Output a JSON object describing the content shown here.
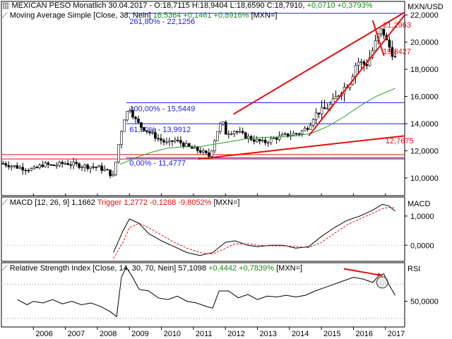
{
  "header": {
    "main": {
      "instrument": "MEXICAN PESO Monatlich",
      "date": "30.04.2017",
      "ohlc": "- O:18,7115 H:18,9404 L:18,6590 C:18,7910",
      "change": "+0,0710 +0,3793%"
    },
    "ma": {
      "label": "Moving Average Simple [Close, 38, Nein]",
      "value": "16,5364",
      "change": "+0,1461 +0,8916%",
      "currency": "[MXN=]"
    },
    "macd": {
      "label": "MACD [12, 26, 9]",
      "value": "1,1662",
      "trigger": "Trigger",
      "trigger_values": "1,2772 -0,1268 -9,8052%",
      "currency": "[MXN=]"
    },
    "rsi": {
      "label": "Relative Strength Index [Close, 14, 30, 70, Nein]",
      "value": "57,1098",
      "change": "+0,4442 +0,7839%",
      "currency": "[MXN=]"
    }
  },
  "chart_data": [
    {
      "type": "candlestick",
      "axis_label": "MXN/USD",
      "ylim": [
        8.7,
        23.0
      ],
      "y_ticks": [
        "10,0000",
        "12,0000",
        "14,0000",
        "16,0000",
        "18,0000",
        "20,0000",
        "22,0000"
      ],
      "y_tick_values": [
        10,
        12,
        14,
        16,
        18,
        20,
        22
      ],
      "x_range": [
        2005.0,
        2017.6
      ],
      "x_ticks": [
        "2006",
        "2007",
        "2008",
        "2009",
        "2010",
        "2011",
        "2012",
        "2013",
        "2014",
        "2015",
        "2016",
        "2017"
      ],
      "x_tick_values": [
        2006,
        2007,
        2008,
        2009,
        2010,
        2011,
        2012,
        2013,
        2014,
        2015,
        2016,
        2017
      ],
      "fib_levels": [
        {
          "label": "261,80% - 22,1256",
          "value": 22.1256
        },
        {
          "label": "100,00% - 15,5449",
          "value": 15.5449
        },
        {
          "label": "61,80% - 13,9912",
          "value": 13.9912
        },
        {
          "label": "0,00% - 11,4777",
          "value": 11.4777
        }
      ],
      "horizontal_lines": [
        11.72,
        11.4
      ],
      "annotations": [
        {
          "label": "12,7675",
          "x": 2017.0,
          "y": 12.7675
        },
        {
          "label": "21,2963",
          "x": 2016.92,
          "y": 21.2963
        },
        {
          "label": "19,3427",
          "x": 2016.92,
          "y": 19.3427
        }
      ],
      "trendlines": [
        {
          "x": [
            2011.15,
            2017.6
          ],
          "y": [
            11.4,
            13.1
          ]
        },
        {
          "x": [
            2012.25,
            2017.6
          ],
          "y": [
            14.7,
            22.2
          ]
        },
        {
          "x": [
            2014.6,
            2017.6
          ],
          "y": [
            13.1,
            22.0
          ]
        },
        {
          "x": [
            2016.6,
            2016.95
          ],
          "y": [
            21.6,
            19.0
          ]
        }
      ],
      "price_series": {
        "x": [
          2005.0,
          2005.5,
          2006.0,
          2006.3,
          2006.6,
          2007.0,
          2007.5,
          2008.0,
          2008.3,
          2008.5,
          2008.7,
          2008.85,
          2009.0,
          2009.15,
          2009.35,
          2009.6,
          2009.9,
          2010.2,
          2010.4,
          2010.6,
          2010.9,
          2011.2,
          2011.5,
          2011.75,
          2011.9,
          2012.0,
          2012.3,
          2012.6,
          2012.9,
          2013.2,
          2013.5,
          2013.8,
          2014.0,
          2014.3,
          2014.6,
          2014.8,
          2015.0,
          2015.3,
          2015.6,
          2015.9,
          2016.1,
          2016.4,
          2016.6,
          2016.75,
          2016.9,
          2017.0,
          2017.3
        ],
        "close": [
          11.1,
          10.8,
          10.6,
          11.0,
          10.9,
          11.1,
          10.9,
          10.8,
          10.5,
          10.1,
          13.0,
          14.5,
          15.2,
          14.4,
          13.8,
          13.4,
          12.9,
          12.5,
          12.8,
          12.6,
          12.2,
          12.0,
          11.6,
          13.5,
          14.2,
          13.3,
          13.5,
          13.1,
          12.8,
          12.6,
          12.9,
          13.1,
          13.2,
          13.3,
          13.8,
          14.7,
          14.9,
          15.4,
          16.4,
          17.1,
          18.6,
          18.3,
          19.4,
          20.4,
          21.0,
          20.2,
          18.8
        ]
      },
      "ma_series": {
        "x": [
          2008.7,
          2009.2,
          2009.7,
          2010.2,
          2010.7,
          2011.2,
          2011.7,
          2012.2,
          2012.7,
          2013.2,
          2013.7,
          2014.2,
          2014.7,
          2015.2,
          2015.7,
          2016.2,
          2016.7,
          2017.3
        ],
        "y": [
          11.0,
          11.5,
          11.9,
          12.2,
          12.3,
          12.3,
          12.5,
          12.7,
          12.9,
          13.0,
          13.0,
          13.1,
          13.3,
          13.8,
          14.5,
          15.3,
          16.0,
          16.6
        ]
      }
    },
    {
      "type": "line",
      "axis_label": "MACD",
      "ylim": [
        -0.55,
        1.65
      ],
      "y_ticks": [
        "1,0000",
        "0,0000"
      ],
      "y_tick_values": [
        1.0,
        0.0
      ],
      "series": [
        {
          "name": "MACD",
          "x": [
            2008.5,
            2008.8,
            2009.0,
            2009.3,
            2009.6,
            2010.0,
            2010.4,
            2010.8,
            2011.2,
            2011.6,
            2012.0,
            2012.3,
            2012.7,
            2013.0,
            2013.4,
            2013.8,
            2014.2,
            2014.6,
            2015.0,
            2015.4,
            2015.8,
            2016.2,
            2016.6,
            2016.9,
            2017.1,
            2017.3
          ],
          "values": [
            -0.25,
            0.5,
            0.9,
            0.75,
            0.4,
            0.15,
            -0.05,
            -0.25,
            -0.35,
            -0.25,
            0.1,
            0.15,
            0.0,
            -0.05,
            0.0,
            0.0,
            -0.1,
            -0.05,
            0.3,
            0.6,
            0.85,
            1.0,
            1.2,
            1.4,
            1.35,
            1.17
          ]
        },
        {
          "name": "Trigger",
          "x": [
            2008.5,
            2008.8,
            2009.0,
            2009.3,
            2009.6,
            2010.0,
            2010.4,
            2010.8,
            2011.2,
            2011.6,
            2012.0,
            2012.3,
            2012.7,
            2013.0,
            2013.4,
            2013.8,
            2014.2,
            2014.6,
            2015.0,
            2015.4,
            2015.8,
            2016.2,
            2016.6,
            2016.9,
            2017.1,
            2017.3
          ],
          "values": [
            -0.45,
            0.1,
            0.6,
            0.75,
            0.6,
            0.35,
            0.1,
            -0.1,
            -0.25,
            -0.3,
            -0.1,
            0.05,
            0.05,
            0.0,
            -0.02,
            -0.02,
            -0.05,
            -0.08,
            0.1,
            0.4,
            0.7,
            0.9,
            1.1,
            1.25,
            1.3,
            1.28
          ]
        }
      ]
    },
    {
      "type": "line",
      "axis_label": "RSI",
      "ylim": [
        20,
        95
      ],
      "y_ticks": [
        "50,0000"
      ],
      "y_tick_values": [
        50
      ],
      "guide_levels": [
        70,
        30
      ],
      "series": [
        {
          "name": "",
          "x": [
            2005.5,
            2005.8,
            2006.0,
            2006.3,
            2006.6,
            2006.9,
            2007.2,
            2007.5,
            2007.8,
            2008.1,
            2008.4,
            2008.6,
            2008.75,
            2008.9,
            2009.1,
            2009.3,
            2009.6,
            2009.9,
            2010.2,
            2010.5,
            2010.8,
            2011.1,
            2011.4,
            2011.6,
            2011.8,
            2012.1,
            2012.4,
            2012.7,
            2013.0,
            2013.3,
            2013.6,
            2013.9,
            2014.2,
            2014.5,
            2014.8,
            2015.1,
            2015.4,
            2015.7,
            2016.0,
            2016.3,
            2016.6,
            2016.8,
            2016.95,
            2017.1,
            2017.3
          ],
          "values": [
            52,
            46,
            50,
            48,
            52,
            47,
            50,
            46,
            48,
            44,
            38,
            32,
            78,
            90,
            78,
            64,
            62,
            54,
            52,
            56,
            50,
            48,
            44,
            42,
            62,
            62,
            54,
            58,
            52,
            56,
            55,
            57,
            55,
            57,
            62,
            66,
            70,
            74,
            78,
            76,
            72,
            80,
            82,
            70,
            57
          ]
        }
      ],
      "annotations": [
        {
          "type": "arrow",
          "x": [
            2015.7,
            2016.9
          ],
          "y": [
            88,
            80
          ]
        },
        {
          "type": "circle",
          "x": 2016.9,
          "y": 72
        }
      ]
    }
  ],
  "colors": {
    "axis": "#000000",
    "fib": "#1e1ee6",
    "trend": "#e01010",
    "ma": "#2a9a2a",
    "macd": "#000000",
    "trigger": "#e01010",
    "candle_up": "#2f7a2f",
    "candle_down": "#000000"
  }
}
